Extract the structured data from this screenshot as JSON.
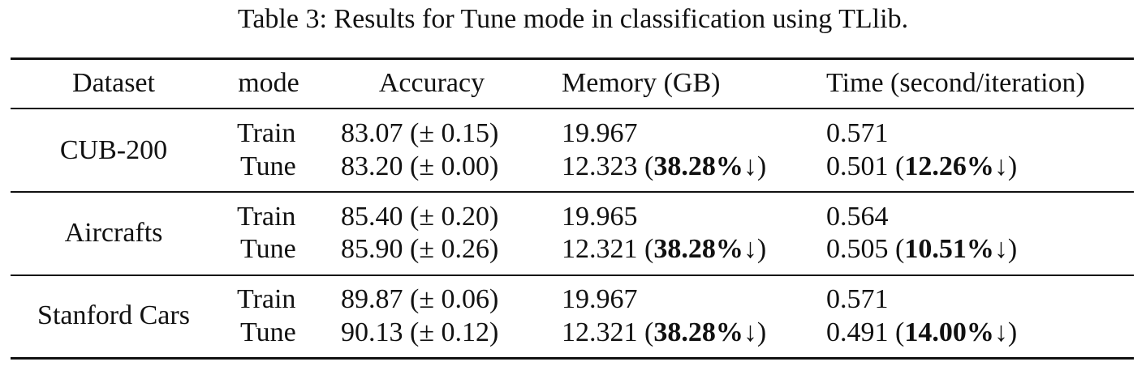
{
  "caption": "Table 3: Results for Tune mode in classification using TLlib.",
  "headers": {
    "dataset": "Dataset",
    "mode": "mode",
    "accuracy": "Accuracy",
    "memory": "Memory (GB)",
    "time": "Time (second/iteration)"
  },
  "groups": [
    {
      "dataset": "CUB-200",
      "train": {
        "mode": "Train",
        "accuracy": "83.07 (± 0.15)",
        "memory": "19.967",
        "time": "0.571"
      },
      "tune": {
        "mode": "Tune",
        "accuracy": "83.20 (± 0.00)",
        "memory_value": "12.323 (",
        "memory_pct": "38.28%",
        "memory_suffix": "↓)",
        "time_value": "0.501 (",
        "time_pct": "12.26%",
        "time_suffix": "↓)"
      }
    },
    {
      "dataset": "Aircrafts",
      "train": {
        "mode": "Train",
        "accuracy": "85.40 (± 0.20)",
        "memory": "19.965",
        "time": "0.564"
      },
      "tune": {
        "mode": "Tune",
        "accuracy": "85.90 (± 0.26)",
        "memory_value": "12.321 (",
        "memory_pct": "38.28%",
        "memory_suffix": "↓)",
        "time_value": "0.505 (",
        "time_pct": "10.51%",
        "time_suffix": "↓)"
      }
    },
    {
      "dataset": "Stanford Cars",
      "train": {
        "mode": "Train",
        "accuracy": "89.87 (± 0.06)",
        "memory": "19.967",
        "time": "0.571"
      },
      "tune": {
        "mode": "Tune",
        "accuracy": "90.13 (± 0.12)",
        "memory_value": "12.321 (",
        "memory_pct": "38.28%",
        "memory_suffix": "↓)",
        "time_value": "0.491 (",
        "time_pct": "14.00%",
        "time_suffix": "↓)"
      }
    }
  ]
}
